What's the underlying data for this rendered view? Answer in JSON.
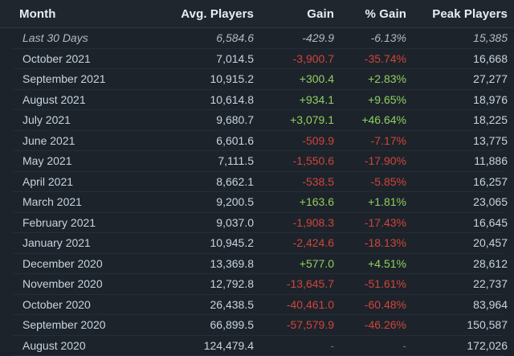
{
  "table": {
    "headers": {
      "month": "Month",
      "avg_players": "Avg. Players",
      "gain": "Gain",
      "pct_gain": "% Gain",
      "peak_players": "Peak Players"
    },
    "rows": [
      {
        "month": "Last 30 Days",
        "avg": "6,584.6",
        "gain": "-429.9",
        "pct": "-6.13%",
        "peak": "15,385",
        "trend": "neg",
        "italic": true
      },
      {
        "month": "October 2021",
        "avg": "7,014.5",
        "gain": "-3,900.7",
        "pct": "-35.74%",
        "peak": "16,668",
        "trend": "neg",
        "italic": false
      },
      {
        "month": "September 2021",
        "avg": "10,915.2",
        "gain": "+300.4",
        "pct": "+2.83%",
        "peak": "27,277",
        "trend": "pos",
        "italic": false
      },
      {
        "month": "August 2021",
        "avg": "10,614.8",
        "gain": "+934.1",
        "pct": "+9.65%",
        "peak": "18,976",
        "trend": "pos",
        "italic": false
      },
      {
        "month": "July 2021",
        "avg": "9,680.7",
        "gain": "+3,079.1",
        "pct": "+46.64%",
        "peak": "18,225",
        "trend": "pos",
        "italic": false
      },
      {
        "month": "June 2021",
        "avg": "6,601.6",
        "gain": "-509.9",
        "pct": "-7.17%",
        "peak": "13,775",
        "trend": "neg",
        "italic": false
      },
      {
        "month": "May 2021",
        "avg": "7,111.5",
        "gain": "-1,550.6",
        "pct": "-17.90%",
        "peak": "11,886",
        "trend": "neg",
        "italic": false
      },
      {
        "month": "April 2021",
        "avg": "8,662.1",
        "gain": "-538.5",
        "pct": "-5.85%",
        "peak": "16,257",
        "trend": "neg",
        "italic": false
      },
      {
        "month": "March 2021",
        "avg": "9,200.5",
        "gain": "+163.6",
        "pct": "+1.81%",
        "peak": "23,065",
        "trend": "pos",
        "italic": false
      },
      {
        "month": "February 2021",
        "avg": "9,037.0",
        "gain": "-1,908.3",
        "pct": "-17.43%",
        "peak": "16,645",
        "trend": "neg",
        "italic": false
      },
      {
        "month": "January 2021",
        "avg": "10,945.2",
        "gain": "-2,424.6",
        "pct": "-18.13%",
        "peak": "20,457",
        "trend": "neg",
        "italic": false
      },
      {
        "month": "December 2020",
        "avg": "13,369.8",
        "gain": "+577.0",
        "pct": "+4.51%",
        "peak": "28,612",
        "trend": "pos",
        "italic": false
      },
      {
        "month": "November 2020",
        "avg": "12,792.8",
        "gain": "-13,645.7",
        "pct": "-51.61%",
        "peak": "22,737",
        "trend": "neg",
        "italic": false
      },
      {
        "month": "October 2020",
        "avg": "26,438.5",
        "gain": "-40,461.0",
        "pct": "-60.48%",
        "peak": "83,964",
        "trend": "neg",
        "italic": false
      },
      {
        "month": "September 2020",
        "avg": "66,899.5",
        "gain": "-57,579.9",
        "pct": "-46.26%",
        "peak": "150,587",
        "trend": "neg",
        "italic": false
      },
      {
        "month": "August 2020",
        "avg": "124,479.4",
        "gain": "-",
        "pct": "-",
        "peak": "172,026",
        "trend": "none",
        "italic": false
      }
    ]
  },
  "colors": {
    "positive": "#8fd05f",
    "negative": "#d0453a",
    "background": "#1d232b"
  }
}
